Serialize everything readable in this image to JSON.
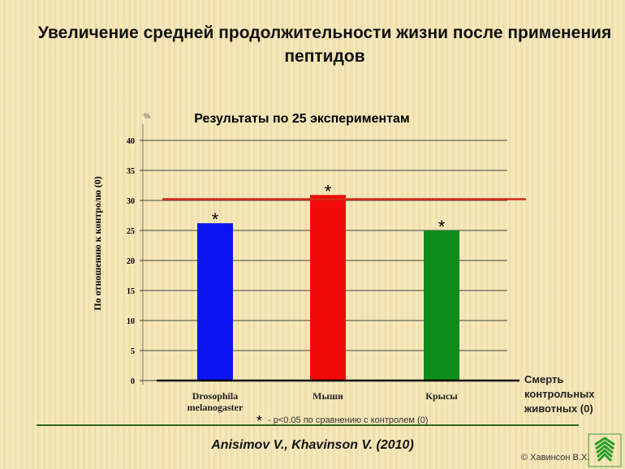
{
  "slide": {
    "title": "Увеличение средней продолжительности жизни после применения пептидов",
    "credit": "Anisimov V., Khavinson V. (2010)",
    "copyright": "© Хавинсон В.Х."
  },
  "chart_data": {
    "type": "bar",
    "title": "Результаты по 25 экспериментам",
    "ylabel": "По отношению к контролю (0)",
    "yunit": "%",
    "ylim": [
      0,
      40
    ],
    "yticks": [
      0,
      5,
      10,
      15,
      20,
      25,
      30,
      35,
      40
    ],
    "grid": true,
    "categories": [
      "Drosophila melanogaster",
      "Мыши",
      "Крысы"
    ],
    "values": [
      26.2,
      30.9,
      25
    ],
    "colors": [
      "#0a14f0",
      "#f00a0a",
      "#0e8c1c"
    ],
    "significance": [
      "*",
      "*",
      "*"
    ],
    "reference_line": {
      "value": 30.2,
      "color": "#d42a1a"
    },
    "baseline_label": "Смерть контрольных животных (0)",
    "footnote": "- p<0.05 по сравнению с контролем (0)",
    "footnote_marker": "*"
  }
}
